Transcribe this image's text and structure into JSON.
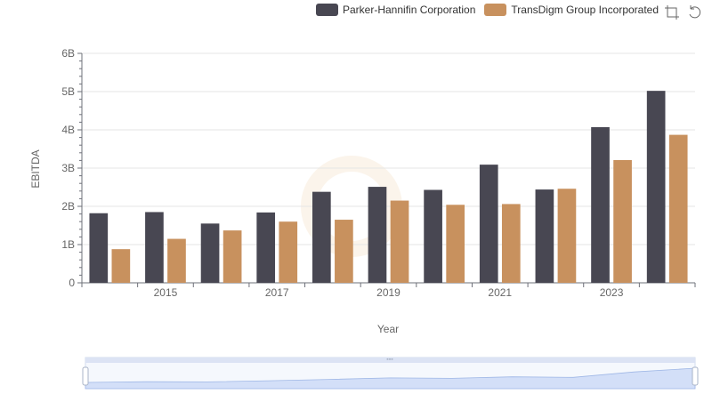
{
  "legend": {
    "items": [
      {
        "label": "Parker-Hannifin Corporation",
        "color": "#484752"
      },
      {
        "label": "TransDigm Group Incorporated",
        "color": "#c8915e"
      }
    ]
  },
  "toolbar": {
    "icons": [
      "zoom-icon",
      "restore-icon"
    ]
  },
  "chart_data": {
    "type": "bar",
    "xlabel": "Year",
    "ylabel": "EBITDA",
    "ylim": [
      0,
      6000000000
    ],
    "y_ticks": [
      "0",
      "1B",
      "2B",
      "3B",
      "4B",
      "5B",
      "6B"
    ],
    "x_ticks": [
      "2015",
      "2017",
      "2019",
      "2021",
      "2023"
    ],
    "categories": [
      "2014",
      "2015",
      "2016",
      "2017",
      "2018",
      "2019",
      "2020",
      "2021",
      "2022",
      "2023",
      "2024"
    ],
    "series": [
      {
        "name": "Parker-Hannifin Corporation",
        "color": "#484752",
        "values": [
          1820000000,
          1850000000,
          1550000000,
          1840000000,
          2380000000,
          2510000000,
          2430000000,
          3090000000,
          2440000000,
          4070000000,
          5020000000
        ]
      },
      {
        "name": "TransDigm Group Incorporated",
        "color": "#c8915e",
        "values": [
          880000000,
          1150000000,
          1370000000,
          1600000000,
          1650000000,
          2150000000,
          2040000000,
          2060000000,
          2460000000,
          3210000000,
          3870000000
        ]
      }
    ],
    "grid": true,
    "legend_position": "top-right",
    "has_datazoom_slider": true
  }
}
